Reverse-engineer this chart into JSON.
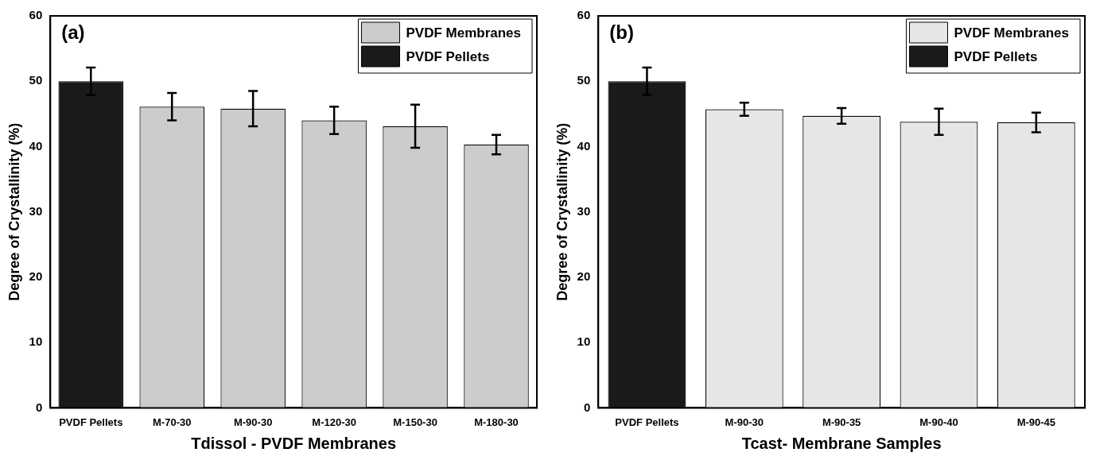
{
  "chart_data": [
    {
      "type": "bar",
      "title": "(a)",
      "xlabel": "Tdissol - PVDF Membranes",
      "ylabel": "Degree of Crystallinity (%)",
      "categories": [
        "PVDF Pellets",
        "M-70-30",
        "M-90-30",
        "M-120-30",
        "M-150-30",
        "M-180-30"
      ],
      "series": [
        {
          "name": "PVDF Membranes",
          "color": "#cccccc",
          "values": [
            null,
            46.1,
            45.8,
            44.0,
            43.1,
            40.3
          ],
          "errors": [
            null,
            2.1,
            2.7,
            2.1,
            3.3,
            1.5
          ]
        },
        {
          "name": "PVDF Pellets",
          "color": "#1a1a1a",
          "values": [
            50.0,
            null,
            null,
            null,
            null,
            null
          ],
          "errors": [
            2.1,
            null,
            null,
            null,
            null,
            null
          ]
        }
      ],
      "ylim": [
        0,
        60
      ],
      "yticks": [
        0,
        10,
        20,
        30,
        40,
        50,
        60
      ],
      "grid": false,
      "legend": "top right"
    },
    {
      "type": "bar",
      "title": "(b)",
      "xlabel": "Tcast- Membrane Samples",
      "ylabel": "Degree of Crystallinity (%)",
      "categories": [
        "PVDF Pellets",
        "M-90-30",
        "M-90-35",
        "M-90-40",
        "M-90-45"
      ],
      "series": [
        {
          "name": "PVDF Membranes",
          "color": "#e6e6e6",
          "values": [
            null,
            45.7,
            44.7,
            43.8,
            43.7
          ],
          "errors": [
            null,
            1.0,
            1.2,
            2.0,
            1.5
          ]
        },
        {
          "name": "PVDF Pellets",
          "color": "#1a1a1a",
          "values": [
            50.0,
            null,
            null,
            null,
            null
          ],
          "errors": [
            2.1,
            null,
            null,
            null,
            null
          ]
        }
      ],
      "ylim": [
        0,
        60
      ],
      "yticks": [
        0,
        10,
        20,
        30,
        40,
        50,
        60
      ],
      "grid": false,
      "legend": "top right"
    }
  ]
}
